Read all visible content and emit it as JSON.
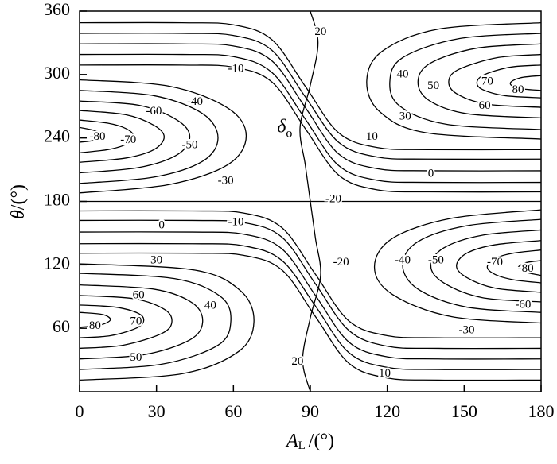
{
  "chart_data": {
    "type": "contour",
    "xlabel": {
      "symbol": "A",
      "subscript": "L",
      "unit": "/(°)"
    },
    "ylabel": {
      "symbol": "θ",
      "unit": "/(°)"
    },
    "xlim": [
      0,
      180
    ],
    "xticks": [
      0,
      30,
      60,
      90,
      120,
      150,
      180
    ],
    "ylim": [
      0,
      360
    ],
    "yticks": [
      60,
      120,
      180,
      240,
      300,
      360
    ],
    "color": "#000000",
    "contours": [
      {
        "x": [
          0,
          35,
          58,
          65,
          58,
          35,
          0
        ],
        "y": [
          295,
          289,
          268,
          242,
          215,
          196,
          188
        ]
      },
      {
        "x": [
          0,
          29,
          48,
          54,
          48,
          29,
          0
        ],
        "y": [
          285,
          280,
          263,
          240,
          218,
          203,
          197
        ]
      },
      {
        "x": [
          0,
          23,
          38,
          43,
          38,
          23,
          0
        ],
        "y": [
          275,
          271,
          257,
          241,
          224,
          212,
          207
        ]
      },
      {
        "x": [
          0,
          18,
          29,
          33,
          29,
          18,
          0
        ],
        "y": [
          266,
          262,
          252,
          241,
          229,
          221,
          217
        ]
      },
      {
        "x": [
          0,
          11,
          18,
          21,
          18,
          11,
          0
        ],
        "y": [
          257,
          254,
          249,
          242,
          234,
          229,
          226
        ]
      },
      {
        "x": [
          0,
          6,
          9,
          6,
          0
        ],
        "y": [
          250,
          247,
          243,
          238,
          236
        ]
      },
      {
        "x": [
          0,
          40,
          60,
          75,
          88,
          101,
          116,
          136,
          180
        ],
        "y": [
          349,
          349,
          347,
          333,
          289,
          245,
          231,
          229,
          229
        ]
      },
      {
        "x": [
          0,
          40,
          60,
          75,
          88,
          101,
          116,
          136,
          180
        ],
        "y": [
          339,
          339,
          337,
          323,
          279,
          236,
          222,
          220,
          220
        ]
      },
      {
        "x": [
          0,
          40,
          60,
          75,
          88,
          101,
          116,
          136,
          180
        ],
        "y": [
          329,
          329,
          327,
          313,
          269,
          225,
          211,
          209,
          209
        ]
      },
      {
        "x": [
          0,
          40,
          60,
          75,
          88,
          101,
          116,
          136,
          180
        ],
        "y": [
          319,
          319,
          317,
          302,
          258,
          214,
          200,
          198,
          198
        ]
      },
      {
        "x": [
          0,
          40,
          60,
          75,
          88,
          101,
          116,
          136,
          180
        ],
        "y": [
          309,
          309,
          307,
          293,
          249,
          205,
          191,
          189,
          189
        ]
      },
      {
        "x": [
          180,
          140,
          118,
          112,
          117,
          135,
          180
        ],
        "y": [
          349,
          343,
          322,
          294,
          265,
          245,
          239
        ]
      },
      {
        "x": [
          180,
          148,
          126,
          121,
          125,
          143,
          180
        ],
        "y": [
          339,
          334,
          316,
          293,
          270,
          253,
          248
        ]
      },
      {
        "x": [
          180,
          155,
          137,
          132,
          136,
          151,
          180
        ],
        "y": [
          329,
          325,
          311,
          294,
          276,
          263,
          259
        ]
      },
      {
        "x": [
          180,
          163,
          148,
          144,
          147,
          159,
          180
        ],
        "y": [
          319,
          316,
          305,
          294,
          282,
          272,
          269
        ]
      },
      {
        "x": [
          180,
          168,
          158,
          155,
          157,
          166,
          180
        ],
        "y": [
          309,
          307,
          300,
          293,
          286,
          280,
          278
        ]
      },
      {
        "x": [
          180,
          172,
          168,
          171,
          180
        ],
        "y": [
          299,
          297,
          292,
          287,
          285
        ]
      },
      {
        "x": [
          0,
          180
        ],
        "y": [
          180,
          180
        ]
      },
      {
        "x": [
          180,
          145,
          122,
          115,
          122,
          145,
          180
        ],
        "y": [
          65,
          71,
          92,
          118,
          145,
          164,
          172
        ]
      },
      {
        "x": [
          180,
          151,
          132,
          126,
          132,
          151,
          180
        ],
        "y": [
          75,
          80,
          97,
          120,
          142,
          157,
          163
        ]
      },
      {
        "x": [
          180,
          157,
          142,
          137,
          142,
          157,
          180
        ],
        "y": [
          85,
          89,
          103,
          119,
          136,
          148,
          153
        ]
      },
      {
        "x": [
          180,
          162,
          151,
          147,
          151,
          162,
          180
        ],
        "y": [
          94,
          98,
          108,
          119,
          131,
          139,
          143
        ]
      },
      {
        "x": [
          180,
          169,
          162,
          159,
          162,
          169,
          180
        ],
        "y": [
          103,
          106,
          111,
          118,
          126,
          131,
          134
        ]
      },
      {
        "x": [
          180,
          174,
          171,
          174,
          180
        ],
        "y": [
          110,
          113,
          117,
          122,
          124
        ]
      },
      {
        "x": [
          0,
          44,
          64,
          79,
          92,
          105,
          120,
          140,
          180
        ],
        "y": [
          131,
          131,
          129,
          115,
          71,
          27,
          13,
          11,
          11
        ]
      },
      {
        "x": [
          0,
          44,
          64,
          79,
          92,
          105,
          120,
          140,
          180
        ],
        "y": [
          140,
          140,
          138,
          124,
          81,
          37,
          23,
          21,
          21
        ]
      },
      {
        "x": [
          0,
          44,
          64,
          79,
          92,
          105,
          120,
          140,
          180
        ],
        "y": [
          151,
          151,
          149,
          135,
          91,
          47,
          33,
          31,
          31
        ]
      },
      {
        "x": [
          0,
          44,
          64,
          79,
          92,
          105,
          120,
          140,
          180
        ],
        "y": [
          162,
          162,
          160,
          146,
          102,
          58,
          43,
          41,
          41
        ]
      },
      {
        "x": [
          0,
          44,
          64,
          79,
          92,
          105,
          120,
          140,
          180
        ],
        "y": [
          171,
          171,
          169,
          155,
          111,
          67,
          53,
          51,
          51
        ]
      },
      {
        "x": [
          0,
          40,
          62,
          68,
          63,
          45,
          0
        ],
        "y": [
          11,
          17,
          38,
          66,
          95,
          115,
          121
        ]
      },
      {
        "x": [
          0,
          32,
          54,
          59,
          55,
          37,
          0
        ],
        "y": [
          21,
          26,
          44,
          67,
          90,
          107,
          112
        ]
      },
      {
        "x": [
          0,
          25,
          43,
          48,
          44,
          29,
          0
        ],
        "y": [
          31,
          35,
          49,
          66,
          84,
          97,
          101
        ]
      },
      {
        "x": [
          0,
          17,
          32,
          36,
          33,
          21,
          0
        ],
        "y": [
          41,
          44,
          55,
          66,
          78,
          88,
          91
        ]
      },
      {
        "x": [
          0,
          12,
          22,
          25,
          23,
          14,
          0
        ],
        "y": [
          51,
          53,
          60,
          67,
          74,
          80,
          82
        ]
      },
      {
        "x": [
          0,
          8,
          12,
          9,
          0
        ],
        "y": [
          61,
          63,
          68,
          73,
          75
        ]
      }
    ],
    "delta_curve": {
      "x": [
        90,
        93,
        90,
        86,
        88,
        90,
        92,
        94,
        90,
        87,
        90
      ],
      "y": [
        360,
        330,
        290,
        250,
        215,
        180,
        145,
        110,
        70,
        30,
        0
      ],
      "label": "δ",
      "subscript": "o",
      "label_x": 80,
      "label_y": 250
    },
    "contour_labels": [
      {
        "text": "20",
        "x": 94,
        "y": 340
      },
      {
        "text": "-10",
        "x": 61,
        "y": 305
      },
      {
        "text": "40",
        "x": 126,
        "y": 300
      },
      {
        "text": "50",
        "x": 138,
        "y": 289
      },
      {
        "text": "70",
        "x": 159,
        "y": 293
      },
      {
        "text": "80",
        "x": 171,
        "y": 285
      },
      {
        "text": "-60",
        "x": 29,
        "y": 265
      },
      {
        "text": "-40",
        "x": 45,
        "y": 274
      },
      {
        "text": "60",
        "x": 158,
        "y": 270
      },
      {
        "text": "30",
        "x": 127,
        "y": 260
      },
      {
        "text": "-80",
        "x": 7,
        "y": 241
      },
      {
        "text": "-70",
        "x": 19,
        "y": 238
      },
      {
        "text": "-50",
        "x": 43,
        "y": 233
      },
      {
        "text": "10",
        "x": 114,
        "y": 241
      },
      {
        "text": "0",
        "x": 137,
        "y": 206
      },
      {
        "text": "-30",
        "x": 57,
        "y": 199
      },
      {
        "text": "-20",
        "x": 99,
        "y": 182
      },
      {
        "text": "0",
        "x": 32,
        "y": 157
      },
      {
        "text": "-10",
        "x": 61,
        "y": 160
      },
      {
        "text": "30",
        "x": 30,
        "y": 124
      },
      {
        "text": "-20",
        "x": 102,
        "y": 122
      },
      {
        "text": "-40",
        "x": 126,
        "y": 124
      },
      {
        "text": "-50",
        "x": 139,
        "y": 124
      },
      {
        "text": "-70",
        "x": 162,
        "y": 122
      },
      {
        "text": "-80",
        "x": 174,
        "y": 116
      },
      {
        "text": "60",
        "x": 23,
        "y": 91
      },
      {
        "text": "40",
        "x": 51,
        "y": 81
      },
      {
        "text": "-60",
        "x": 173,
        "y": 82
      },
      {
        "text": "80",
        "x": 6,
        "y": 62
      },
      {
        "text": "70",
        "x": 22,
        "y": 66
      },
      {
        "text": "-30",
        "x": 151,
        "y": 58
      },
      {
        "text": "50",
        "x": 22,
        "y": 32
      },
      {
        "text": "20",
        "x": 85,
        "y": 28
      },
      {
        "text": "10",
        "x": 119,
        "y": 17
      }
    ]
  }
}
